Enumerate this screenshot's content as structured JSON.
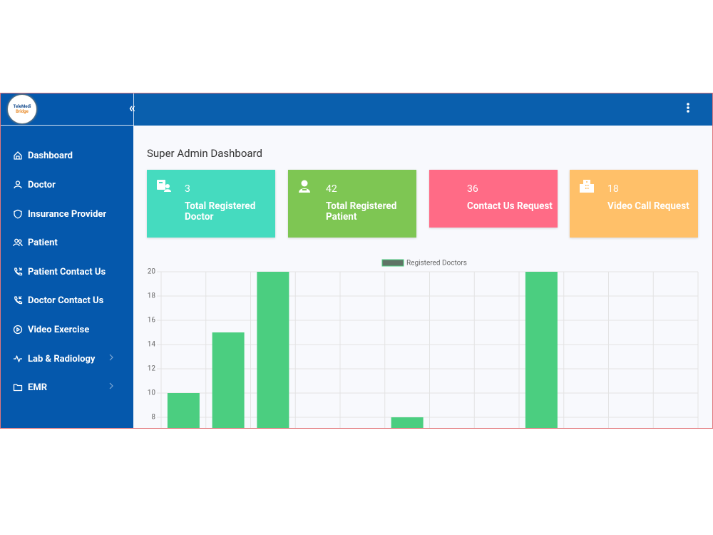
{
  "logo": {
    "line1": "TeleMedi",
    "line2": "Bridge"
  },
  "header": {
    "collapse": "«"
  },
  "sidebar": {
    "items": [
      "Dashboard",
      "Doctor",
      "Insurance Provider",
      "Patient",
      "Patient Contact Us",
      "Doctor Contact Us",
      "Video Exercise",
      "Lab & Radiology",
      "EMR"
    ]
  },
  "page": {
    "title": "Super Admin Dashboard"
  },
  "cards": [
    {
      "value": "3",
      "label": "Total Registered Doctor"
    },
    {
      "value": "42",
      "label": "Total Registered Patient"
    },
    {
      "value": "36",
      "label": "Contact Us Request"
    },
    {
      "value": "18",
      "label": "Video Call Request"
    }
  ],
  "chart_data": {
    "type": "bar",
    "categories": [
      null,
      null,
      null,
      null,
      null,
      null,
      null,
      null,
      null,
      null,
      null,
      null
    ],
    "series": [
      {
        "name": "Registered Doctors",
        "color": "#4bce80",
        "values": [
          10,
          15,
          20,
          0,
          0,
          8,
          0,
          0,
          20,
          0,
          0,
          0
        ]
      }
    ],
    "ylim": [
      0,
      20
    ],
    "yticks": [
      8,
      10,
      12,
      14,
      16,
      18,
      20
    ],
    "grid": true,
    "legend": "top"
  }
}
